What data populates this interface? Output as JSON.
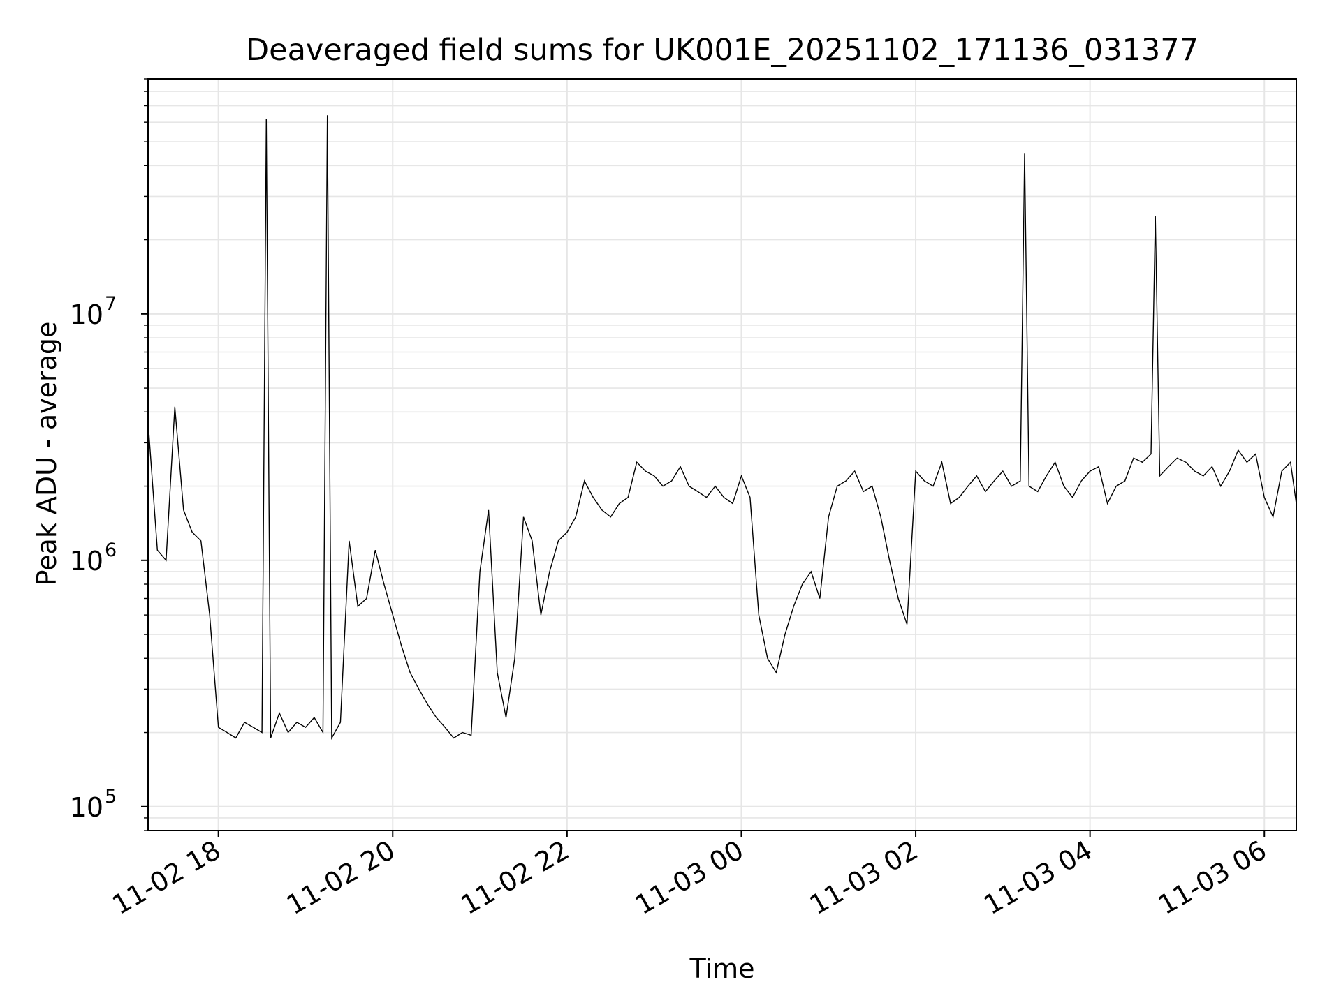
{
  "chart_data": {
    "type": "line",
    "title": "Deaveraged field sums for UK001E_20251102_171136_031377",
    "xlabel": "Time",
    "ylabel": "Peak ADU - average",
    "yscale": "log",
    "ylim": [
      80000,
      90000000
    ],
    "xlim": [
      "2025-11-02 17:11:36",
      "2025-11-03 06:22:00"
    ],
    "grid": true,
    "line_color": "#000000",
    "grid_color": "#e6e6e6",
    "x_ticks": [
      {
        "label": "11-02 18",
        "t": "2025-11-02 18:00"
      },
      {
        "label": "11-02 20",
        "t": "2025-11-02 20:00"
      },
      {
        "label": "11-02 22",
        "t": "2025-11-02 22:00"
      },
      {
        "label": "11-03 00",
        "t": "2025-11-03 00:00"
      },
      {
        "label": "11-03 02",
        "t": "2025-11-03 02:00"
      },
      {
        "label": "11-03 04",
        "t": "2025-11-03 04:00"
      },
      {
        "label": "11-03 06",
        "t": "2025-11-03 06:00"
      }
    ],
    "y_ticks": [
      {
        "base": "10",
        "exp": "5",
        "value": 100000
      },
      {
        "base": "10",
        "exp": "6",
        "value": 1000000
      },
      {
        "base": "10",
        "exp": "7",
        "value": 10000000
      }
    ],
    "series": [
      {
        "x": [
          "2025-11-02 17:12",
          "2025-11-02 17:18",
          "2025-11-02 17:24",
          "2025-11-02 17:30",
          "2025-11-02 17:36",
          "2025-11-02 17:42",
          "2025-11-02 17:48",
          "2025-11-02 17:54",
          "2025-11-02 18:00",
          "2025-11-02 18:06",
          "2025-11-02 18:12",
          "2025-11-02 18:18",
          "2025-11-02 18:24",
          "2025-11-02 18:30",
          "2025-11-02 18:33",
          "2025-11-02 18:36",
          "2025-11-02 18:42",
          "2025-11-02 18:48",
          "2025-11-02 18:54",
          "2025-11-02 19:00",
          "2025-11-02 19:06",
          "2025-11-02 19:12",
          "2025-11-02 19:15",
          "2025-11-02 19:18",
          "2025-11-02 19:24",
          "2025-11-02 19:30",
          "2025-11-02 19:36",
          "2025-11-02 19:42",
          "2025-11-02 19:48",
          "2025-11-02 19:54",
          "2025-11-02 20:00",
          "2025-11-02 20:06",
          "2025-11-02 20:12",
          "2025-11-02 20:18",
          "2025-11-02 20:24",
          "2025-11-02 20:30",
          "2025-11-02 20:36",
          "2025-11-02 20:42",
          "2025-11-02 20:48",
          "2025-11-02 20:54",
          "2025-11-02 21:00",
          "2025-11-02 21:06",
          "2025-11-02 21:12",
          "2025-11-02 21:18",
          "2025-11-02 21:24",
          "2025-11-02 21:30",
          "2025-11-02 21:36",
          "2025-11-02 21:42",
          "2025-11-02 21:48",
          "2025-11-02 21:54",
          "2025-11-02 22:00",
          "2025-11-02 22:06",
          "2025-11-02 22:12",
          "2025-11-02 22:18",
          "2025-11-02 22:24",
          "2025-11-02 22:30",
          "2025-11-02 22:36",
          "2025-11-02 22:42",
          "2025-11-02 22:48",
          "2025-11-02 22:54",
          "2025-11-02 23:00",
          "2025-11-02 23:06",
          "2025-11-02 23:12",
          "2025-11-02 23:18",
          "2025-11-02 23:24",
          "2025-11-02 23:30",
          "2025-11-02 23:36",
          "2025-11-02 23:42",
          "2025-11-02 23:48",
          "2025-11-02 23:54",
          "2025-11-03 00:00",
          "2025-11-03 00:06",
          "2025-11-03 00:12",
          "2025-11-03 00:18",
          "2025-11-03 00:24",
          "2025-11-03 00:30",
          "2025-11-03 00:36",
          "2025-11-03 00:42",
          "2025-11-03 00:48",
          "2025-11-03 00:54",
          "2025-11-03 01:00",
          "2025-11-03 01:06",
          "2025-11-03 01:12",
          "2025-11-03 01:18",
          "2025-11-03 01:24",
          "2025-11-03 01:30",
          "2025-11-03 01:36",
          "2025-11-03 01:42",
          "2025-11-03 01:48",
          "2025-11-03 01:54",
          "2025-11-03 02:00",
          "2025-11-03 02:06",
          "2025-11-03 02:12",
          "2025-11-03 02:18",
          "2025-11-03 02:24",
          "2025-11-03 02:30",
          "2025-11-03 02:36",
          "2025-11-03 02:42",
          "2025-11-03 02:48",
          "2025-11-03 02:54",
          "2025-11-03 03:00",
          "2025-11-03 03:06",
          "2025-11-03 03:12",
          "2025-11-03 03:15",
          "2025-11-03 03:18",
          "2025-11-03 03:24",
          "2025-11-03 03:30",
          "2025-11-03 03:36",
          "2025-11-03 03:42",
          "2025-11-03 03:48",
          "2025-11-03 03:54",
          "2025-11-03 04:00",
          "2025-11-03 04:06",
          "2025-11-03 04:12",
          "2025-11-03 04:18",
          "2025-11-03 04:24",
          "2025-11-03 04:30",
          "2025-11-03 04:36",
          "2025-11-03 04:42",
          "2025-11-03 04:45",
          "2025-11-03 04:48",
          "2025-11-03 04:54",
          "2025-11-03 05:00",
          "2025-11-03 05:06",
          "2025-11-03 05:12",
          "2025-11-03 05:18",
          "2025-11-03 05:24",
          "2025-11-03 05:30",
          "2025-11-03 05:36",
          "2025-11-03 05:42",
          "2025-11-03 05:48",
          "2025-11-03 05:54",
          "2025-11-03 06:00",
          "2025-11-03 06:06",
          "2025-11-03 06:12",
          "2025-11-03 06:18",
          "2025-11-03 06:22"
        ],
        "y": [
          3400000,
          1100000,
          1000000,
          4200000,
          1600000,
          1300000,
          1200000,
          600000,
          210000,
          200000,
          190000,
          220000,
          210000,
          200000,
          62000000,
          190000,
          240000,
          200000,
          220000,
          210000,
          230000,
          200000,
          64000000,
          190000,
          220000,
          1200000,
          650000,
          700000,
          1100000,
          800000,
          600000,
          450000,
          350000,
          300000,
          260000,
          230000,
          210000,
          190000,
          200000,
          195000,
          900000,
          1600000,
          350000,
          230000,
          400000,
          1500000,
          1200000,
          600000,
          900000,
          1200000,
          1300000,
          1500000,
          2100000,
          1800000,
          1600000,
          1500000,
          1700000,
          1800000,
          2500000,
          2300000,
          2200000,
          2000000,
          2100000,
          2400000,
          2000000,
          1900000,
          1800000,
          2000000,
          1800000,
          1700000,
          2200000,
          1800000,
          600000,
          400000,
          350000,
          500000,
          650000,
          800000,
          900000,
          700000,
          1500000,
          2000000,
          2100000,
          2300000,
          1900000,
          2000000,
          1500000,
          1000000,
          700000,
          550000,
          2300000,
          2100000,
          2000000,
          2500000,
          1700000,
          1800000,
          2000000,
          2200000,
          1900000,
          2100000,
          2300000,
          2000000,
          2100000,
          45000000,
          2000000,
          1900000,
          2200000,
          2500000,
          2000000,
          1800000,
          2100000,
          2300000,
          2400000,
          1700000,
          2000000,
          2100000,
          2600000,
          2500000,
          2700000,
          25000000,
          2200000,
          2400000,
          2600000,
          2500000,
          2300000,
          2200000,
          2400000,
          2000000,
          2300000,
          2800000,
          2500000,
          2700000,
          1800000,
          1500000,
          2300000,
          2500000,
          1700000
        ]
      }
    ]
  }
}
